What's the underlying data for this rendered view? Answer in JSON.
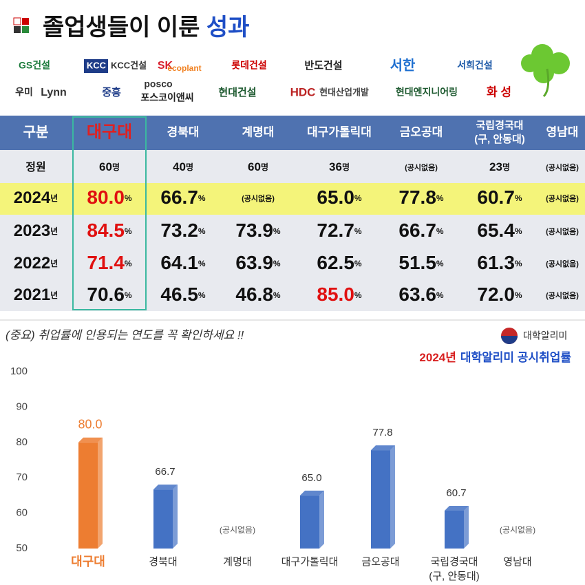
{
  "header": {
    "title": "졸업생들이 이룬",
    "title_highlight": "성과"
  },
  "logos": [
    "GS건설",
    "KCC",
    "KCC건설",
    "SK",
    "ecoplant",
    "롯데건설",
    "반도건설",
    "서한",
    "서희건설",
    "우미",
    "Lynn",
    "중흥",
    "posco",
    "포스코이앤씨",
    "현대건설",
    "HDC",
    "현대산업개발",
    "현대엔지니어링",
    "화 성"
  ],
  "table": {
    "header": [
      "구분",
      "대구대",
      "경북대",
      "계명대",
      "대구가톨릭대",
      "금오공대",
      [
        "국립경국대",
        "(구, 안동대)"
      ],
      "영남대"
    ],
    "rows": [
      {
        "label": "정원",
        "cells": [
          {
            "text": "60",
            "unit": "명"
          },
          {
            "text": "40",
            "unit": "명"
          },
          {
            "text": "60",
            "unit": "명"
          },
          {
            "text": "36",
            "unit": "명"
          },
          {
            "text": "(공시없음)"
          },
          {
            "text": "23",
            "unit": "명"
          },
          {
            "text": "(공시없음)"
          }
        ]
      },
      {
        "label": "2024",
        "unit": "년",
        "highlight": true,
        "cells": [
          {
            "text": "80.0",
            "unit": "%",
            "red": true
          },
          {
            "text": "66.7",
            "unit": "%"
          },
          {
            "text": "(공시없음)"
          },
          {
            "text": "65.0",
            "unit": "%"
          },
          {
            "text": "77.8",
            "unit": "%"
          },
          {
            "text": "60.7",
            "unit": "%"
          },
          {
            "text": "(공시없음)"
          }
        ]
      },
      {
        "label": "2023",
        "unit": "년",
        "cells": [
          {
            "text": "84.5",
            "unit": "%",
            "red": true
          },
          {
            "text": "73.2",
            "unit": "%"
          },
          {
            "text": "73.9",
            "unit": "%"
          },
          {
            "text": "72.7",
            "unit": "%"
          },
          {
            "text": "66.7",
            "unit": "%"
          },
          {
            "text": "65.4",
            "unit": "%"
          },
          {
            "text": "(공시없음)"
          }
        ]
      },
      {
        "label": "2022",
        "unit": "년",
        "cells": [
          {
            "text": "71.4",
            "unit": "%",
            "red": true
          },
          {
            "text": "64.1",
            "unit": "%"
          },
          {
            "text": "63.9",
            "unit": "%"
          },
          {
            "text": "62.5",
            "unit": "%"
          },
          {
            "text": "51.5",
            "unit": "%"
          },
          {
            "text": "61.3",
            "unit": "%"
          },
          {
            "text": "(공시없음)"
          }
        ]
      },
      {
        "label": "2021",
        "unit": "년",
        "cells": [
          {
            "text": "70.6",
            "unit": "%"
          },
          {
            "text": "46.5",
            "unit": "%"
          },
          {
            "text": "46.8",
            "unit": "%"
          },
          {
            "text": "85.0",
            "unit": "%",
            "red": true
          },
          {
            "text": "63.6",
            "unit": "%"
          },
          {
            "text": "72.0",
            "unit": "%"
          },
          {
            "text": "(공시없음)"
          }
        ]
      }
    ]
  },
  "note": "(중요) 취업률에 인용되는 연도를 꼭 확인하세요 !!",
  "source_logo": "대학알리미",
  "chart_data": {
    "type": "bar",
    "title": [
      "2024년",
      "대학알리미 공시취업률"
    ],
    "categories": [
      "대구대",
      "경북대",
      "계명대",
      "대구가톨릭대",
      "금오공대",
      [
        "국립경국대",
        "(구, 안동대)"
      ],
      "영남대"
    ],
    "values": [
      80.0,
      66.7,
      null,
      65.0,
      77.8,
      60.7,
      null
    ],
    "value_labels": [
      "80.0",
      "66.7",
      null,
      "65.0",
      "77.8",
      "60.7",
      null
    ],
    "colors": [
      "#ed7d31",
      "#4472c4",
      "#4472c4",
      "#4472c4",
      "#4472c4",
      "#4472c4",
      "#4472c4"
    ],
    "no_data_label": "(공시없음)",
    "ylim": [
      50,
      100
    ],
    "yticks": [
      50,
      60,
      70,
      80,
      90,
      100
    ]
  }
}
